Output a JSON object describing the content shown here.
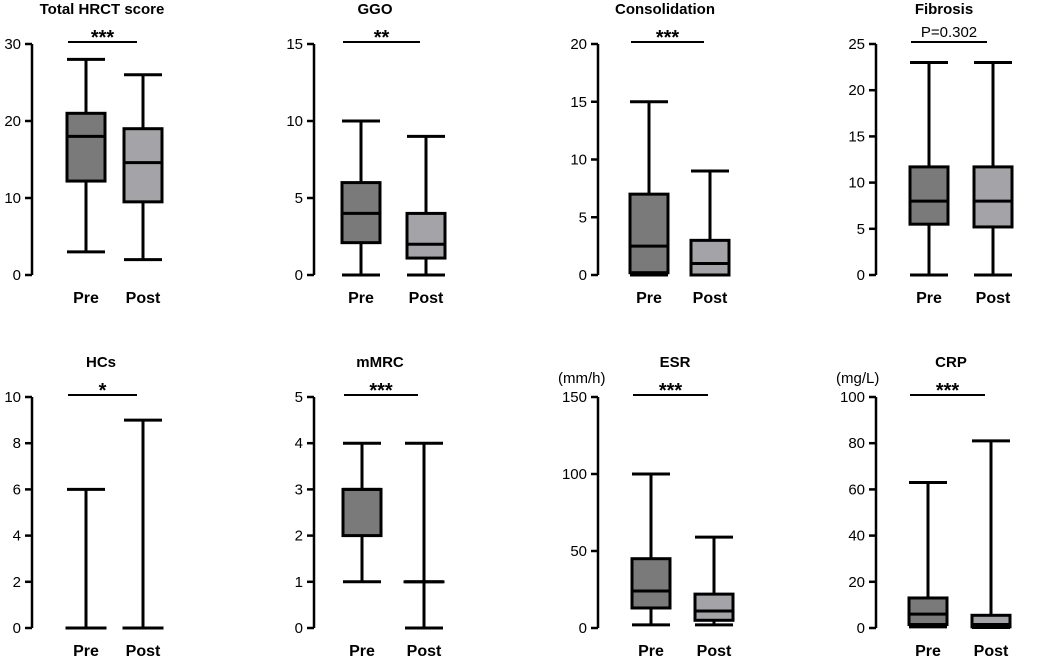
{
  "colors": {
    "pre": "#7a7a7a",
    "post": "#a4a4a8",
    "stroke": "#000000"
  },
  "chart_data": [
    {
      "type": "box",
      "title": "Total HRCT score",
      "unit": "",
      "categories": [
        "Pre",
        "Post"
      ],
      "ylim": [
        0,
        30
      ],
      "yticks": [
        0,
        10,
        20,
        30
      ],
      "boxes": [
        {
          "name": "Pre",
          "min": 3,
          "q1": 12.2,
          "median": 18,
          "q3": 21,
          "max": 28
        },
        {
          "name": "Post",
          "min": 2,
          "q1": 9.5,
          "median": 14.6,
          "q3": 19,
          "max": 26
        }
      ],
      "significance": "***"
    },
    {
      "type": "box",
      "title": "GGO",
      "unit": "",
      "categories": [
        "Pre",
        "Post"
      ],
      "ylim": [
        0,
        15
      ],
      "yticks": [
        0,
        5,
        10,
        15
      ],
      "boxes": [
        {
          "name": "Pre",
          "min": 0,
          "q1": 2.1,
          "median": 4,
          "q3": 6,
          "max": 10
        },
        {
          "name": "Post",
          "min": 0,
          "q1": 1.1,
          "median": 2,
          "q3": 4,
          "max": 9
        }
      ],
      "significance": "**"
    },
    {
      "type": "box",
      "title": "Consolidation",
      "unit": "",
      "categories": [
        "Pre",
        "Post"
      ],
      "ylim": [
        0,
        20
      ],
      "yticks": [
        0,
        5,
        10,
        15,
        20
      ],
      "boxes": [
        {
          "name": "Pre",
          "min": 0,
          "q1": 0.2,
          "median": 2.5,
          "q3": 7,
          "max": 15
        },
        {
          "name": "Post",
          "min": 0,
          "q1": 0,
          "median": 1,
          "q3": 3,
          "max": 9
        }
      ],
      "significance": "***"
    },
    {
      "type": "box",
      "title": "Fibrosis",
      "unit": "",
      "categories": [
        "Pre",
        "Post"
      ],
      "ylim": [
        0,
        25
      ],
      "yticks": [
        0,
        5,
        10,
        15,
        20,
        25
      ],
      "boxes": [
        {
          "name": "Pre",
          "min": 0,
          "q1": 5.5,
          "median": 8,
          "q3": 11.7,
          "max": 23
        },
        {
          "name": "Post",
          "min": 0,
          "q1": 5.2,
          "median": 8,
          "q3": 11.7,
          "max": 23
        }
      ],
      "significance": "P=0.302"
    },
    {
      "type": "box",
      "title": "HCs",
      "unit": "",
      "categories": [
        "Pre",
        "Post"
      ],
      "ylim": [
        0,
        10
      ],
      "yticks": [
        0,
        2,
        4,
        6,
        8,
        10
      ],
      "boxes": [
        {
          "name": "Pre",
          "min": 0,
          "q1": 0,
          "median": 0,
          "q3": 0,
          "max": 6
        },
        {
          "name": "Post",
          "min": 0,
          "q1": 0,
          "median": 0,
          "q3": 0,
          "max": 9
        }
      ],
      "significance": "*"
    },
    {
      "type": "box",
      "title": "mMRC",
      "unit": "",
      "categories": [
        "Pre",
        "Post"
      ],
      "ylim": [
        0,
        5
      ],
      "yticks": [
        0,
        1,
        2,
        3,
        4,
        5
      ],
      "boxes": [
        {
          "name": "Pre",
          "min": 1,
          "q1": 2,
          "median": 3,
          "q3": 3,
          "max": 4
        },
        {
          "name": "Post",
          "min": 0,
          "q1": 1,
          "median": 1,
          "q3": 1,
          "max": 4
        }
      ],
      "significance": "***"
    },
    {
      "type": "box",
      "title": "ESR",
      "unit": "(mm/h)",
      "categories": [
        "Pre",
        "Post"
      ],
      "ylim": [
        0,
        150
      ],
      "yticks": [
        0,
        50,
        100,
        150
      ],
      "boxes": [
        {
          "name": "Pre",
          "min": 2,
          "q1": 13,
          "median": 24,
          "q3": 45,
          "max": 100
        },
        {
          "name": "Post",
          "min": 2,
          "q1": 5,
          "median": 11,
          "q3": 22,
          "max": 59
        }
      ],
      "significance": "***"
    },
    {
      "type": "box",
      "title": "CRP",
      "unit": "(mg/L)",
      "categories": [
        "Pre",
        "Post"
      ],
      "ylim": [
        0,
        100
      ],
      "yticks": [
        0,
        20,
        40,
        60,
        80,
        100
      ],
      "boxes": [
        {
          "name": "Pre",
          "min": 0.5,
          "q1": 1.5,
          "median": 6,
          "q3": 13,
          "max": 63
        },
        {
          "name": "Post",
          "min": 0.2,
          "q1": 0.5,
          "median": 1.5,
          "q3": 5.5,
          "max": 81
        }
      ],
      "significance": "***"
    }
  ]
}
